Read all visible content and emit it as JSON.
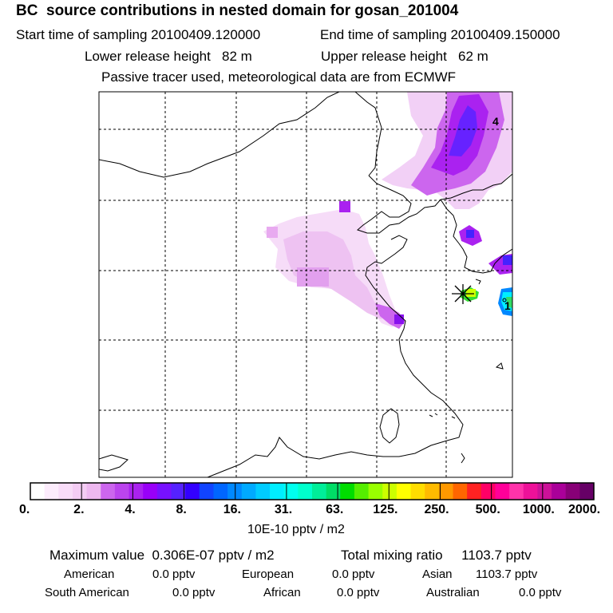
{
  "header": {
    "title": "BC  source contributions in nested domain for gosan_201004",
    "start_time": "Start time of sampling 20100409.120000",
    "end_time": "End time of sampling 20100409.150000",
    "lower_release": "Lower release height   82 m",
    "upper_release": "Upper release height   62 m",
    "tracer_info": "Passive tracer used, meteorological data are from ECMWF"
  },
  "map": {
    "labels": {
      "top_right": "4",
      "right_marker": "1"
    }
  },
  "colorbar": {
    "colors": [
      "#ffffff",
      "#fcecfc",
      "#f8dcf8",
      "#f4ccf4",
      "#eeb8f0",
      "#cc66ee",
      "#bb44ee",
      "#aa22f0",
      "#9900f8",
      "#7711ff",
      "#5522ff",
      "#3300ff",
      "#1144ff",
      "#0066ff",
      "#0088ff",
      "#00aaff",
      "#00ccff",
      "#00eeff",
      "#00ffee",
      "#00ffcc",
      "#00ee99",
      "#00dd66",
      "#00dd00",
      "#55ee00",
      "#99ff00",
      "#ccff00",
      "#ffff00",
      "#ffdd00",
      "#ffbb00",
      "#ff9900",
      "#ff6600",
      "#ff2222",
      "#ff0066",
      "#ff0099",
      "#ff33aa",
      "#ee1199",
      "#cc1199",
      "#aa0099",
      "#880077",
      "#660066"
    ],
    "ticks": [
      "0.",
      "2.",
      "4.",
      "8.",
      "16.",
      "31.",
      "63.",
      "125.",
      "250.",
      "500.",
      "1000.",
      "2000."
    ],
    "unit": "10E-10 pptv / m2"
  },
  "stats": {
    "max_value": "Maximum value  0.306E-07 pptv / m2",
    "total_mixing": "Total mixing ratio     1103.7 pptv",
    "american_label": "American",
    "american_value": "0.0 pptv",
    "european_label": "European",
    "european_value": "0.0 pptv",
    "asian_label": "Asian",
    "asian_value": "1103.7 pptv",
    "south_american_label": "South American",
    "south_american_value": "0.0 pptv",
    "african_label": "African",
    "african_value": "0.0 pptv",
    "australian_label": "Australian",
    "australian_value": "0.0 pptv"
  }
}
